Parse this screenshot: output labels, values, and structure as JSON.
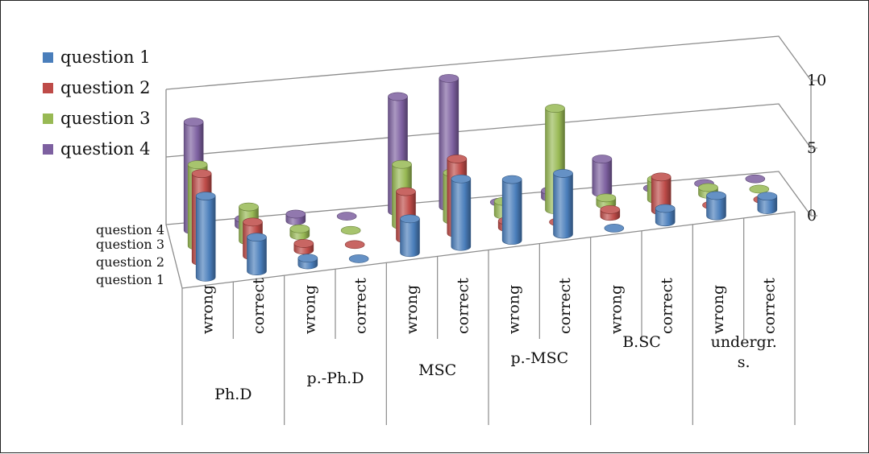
{
  "colors": {
    "question1": "#4a7ebb",
    "question2": "#be4b48",
    "question3": "#98b954",
    "question4": "#7d60a0"
  },
  "chart_data": {
    "type": "bar",
    "subtype": "3d-cylinder",
    "title": "",
    "xlabel": "",
    "ylabel": "",
    "ylim": [
      0,
      10
    ],
    "yticks": [
      "0",
      "5",
      "10"
    ],
    "legend_position": "left",
    "categories": [
      "wrong",
      "correct",
      "wrong",
      "correct",
      "wrong",
      "correct",
      "wrong",
      "correct",
      "wrong",
      "correct",
      "wrong",
      "correct"
    ],
    "groups": [
      "Ph.D",
      "p.-Ph.D",
      "MSC",
      "p.-MSC",
      "B.SC",
      "undergr. s."
    ],
    "depth_labels": [
      "question 4",
      "question 3",
      "question  2",
      "question 1"
    ],
    "series": [
      {
        "name": "question 1",
        "values": [
          6,
          2.5,
          0.5,
          0,
          2.5,
          5,
          4.5,
          4.5,
          0,
          1,
          1.5,
          1
        ]
      },
      {
        "name": "question  2",
        "values": [
          6.5,
          2.5,
          0.5,
          0,
          3.5,
          5.5,
          0.5,
          0,
          0.5,
          2.5,
          0,
          0
        ]
      },
      {
        "name": "question 3",
        "values": [
          6,
          2.5,
          0.5,
          0,
          4.5,
          3.5,
          1,
          7.5,
          0.5,
          1.5,
          0.5,
          0
        ]
      },
      {
        "name": "question 4",
        "values": [
          8,
          0.5,
          0.5,
          0,
          8.5,
          9.5,
          0,
          0.5,
          2.5,
          0,
          0,
          0
        ]
      }
    ]
  }
}
